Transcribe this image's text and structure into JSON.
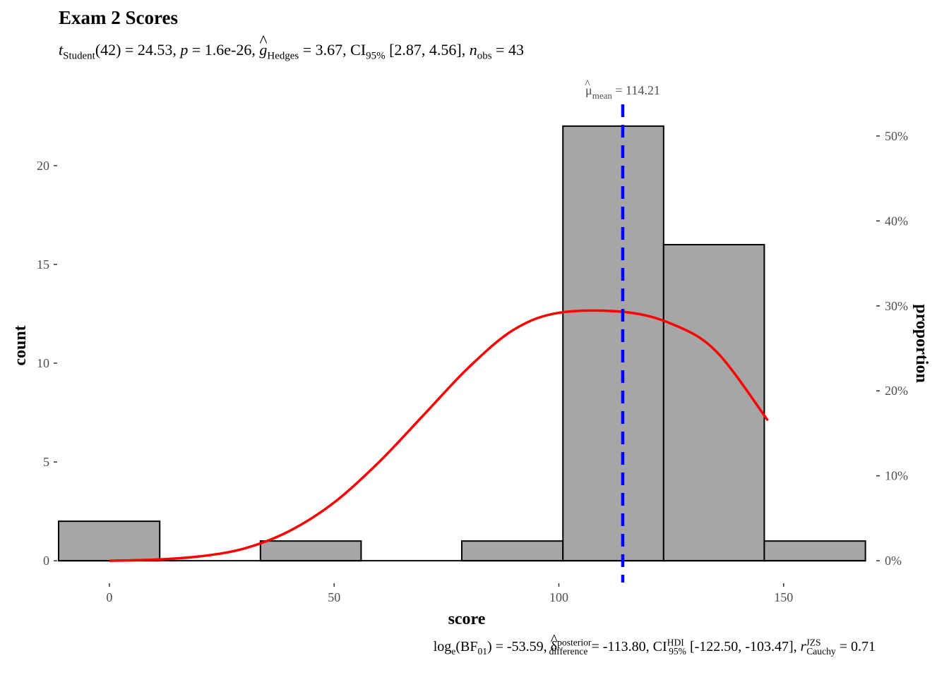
{
  "title": "Exam 2 Scores",
  "subtitle": {
    "t_sym": "t",
    "t_sub": "Student",
    "t_val": "(42) = 24.53, ",
    "p_sym": "p",
    "p_val": " = 1.6e-26, ",
    "g_sym": "g",
    "g_sub": "Hedges",
    "g_val": " = 3.67, CI",
    "ci_sub": "95%",
    "ci_val": " [2.87, 4.56], ",
    "n_sym": "n",
    "n_sub": "obs",
    "n_val": " = 43"
  },
  "caption": {
    "log_text": "log",
    "log_sub": "e",
    "bf_open": "(BF",
    "bf_sub": "01",
    "bf_val": ") = -53.59, ",
    "delta_sym": "δ",
    "delta_sup": "posterior",
    "delta_sub": "difference",
    "delta_val": " = -113.80, CI",
    "ci_sup": "HDI",
    "ci_sub": "95%",
    "ci_val": " [-122.50, -103.47], ",
    "r_sym": "r",
    "r_sup": "JZS",
    "r_sub": "Cauchy",
    "r_val": " = 0.71"
  },
  "colors": {
    "bar_fill": "#a6a6a6",
    "bar_stroke": "#000000",
    "density": "#ff0000",
    "mean_line": "#0000ff",
    "axis_text": "#4d4d4d"
  },
  "chart_data": {
    "type": "bar",
    "subtype": "histogram",
    "xlabel": "score",
    "ylabel": "count",
    "ylabel_right": "proportion",
    "xlim": [
      -11.3,
      169.2
    ],
    "ylim": [
      -1.1,
      23.1
    ],
    "xticks": [
      0,
      50,
      100,
      150
    ],
    "yticks": [
      0,
      5,
      10,
      15,
      20
    ],
    "yticks_right": [
      "0%",
      "10%",
      "20%",
      "30%",
      "40%",
      "50%"
    ],
    "yticks_right_values": [
      0,
      0.1,
      0.2,
      0.3,
      0.4,
      0.5
    ],
    "n_total": 43,
    "grid": false,
    "bins": [
      {
        "x0": -11.3,
        "x1": 11.2,
        "count": 2
      },
      {
        "x0": 11.2,
        "x1": 33.6,
        "count": 0
      },
      {
        "x0": 33.6,
        "x1": 56.0,
        "count": 1
      },
      {
        "x0": 56.0,
        "x1": 78.4,
        "count": 0
      },
      {
        "x0": 78.4,
        "x1": 100.9,
        "count": 1
      },
      {
        "x0": 100.9,
        "x1": 123.3,
        "count": 22
      },
      {
        "x0": 123.3,
        "x1": 145.7,
        "count": 16
      },
      {
        "x0": 145.7,
        "x1": 168.2,
        "count": 1
      }
    ],
    "density_curve": {
      "x": [
        0,
        10,
        20,
        30,
        40,
        50,
        60,
        70,
        80,
        90,
        100,
        114.21,
        125,
        135,
        146.5
      ],
      "y": [
        0.0,
        0.06,
        0.22,
        0.62,
        1.5,
        2.95,
        5.0,
        7.4,
        9.8,
        11.7,
        12.55,
        12.6,
        12.0,
        10.6,
        7.1
      ]
    },
    "mean": {
      "value": 114.21,
      "label_sym": "μ",
      "label_sub": "mean",
      "label_val": " = 114.21"
    }
  }
}
